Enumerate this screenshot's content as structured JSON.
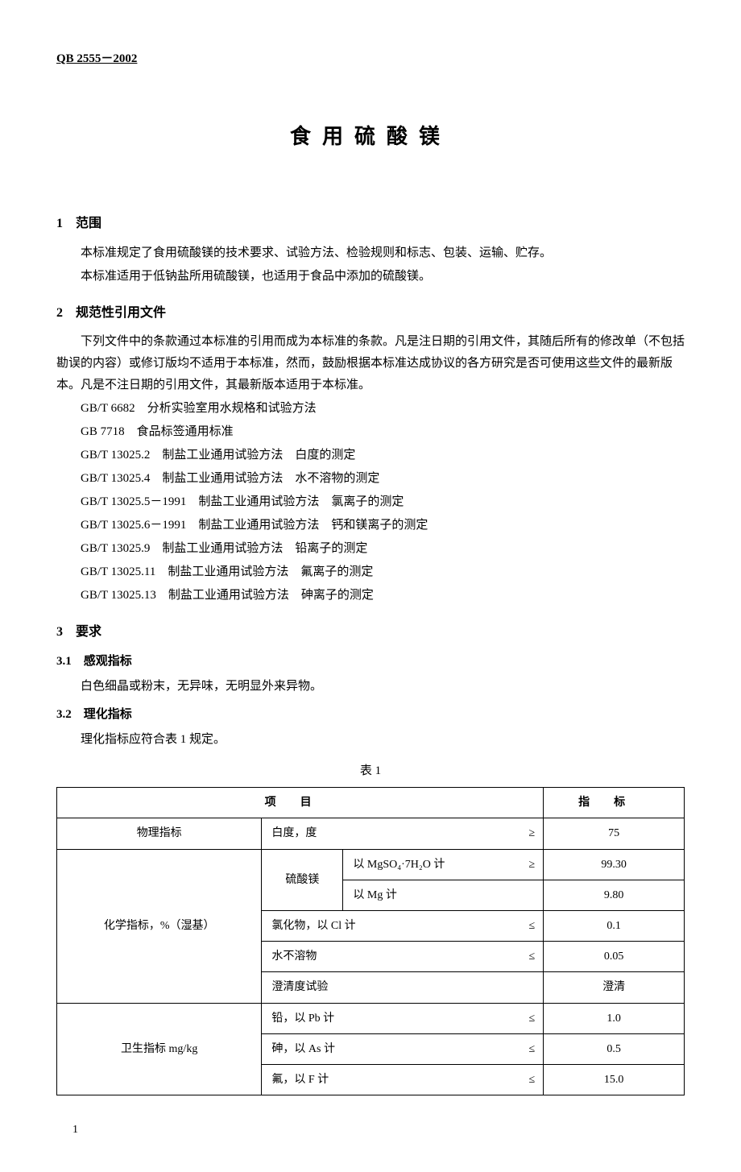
{
  "header_code": "QB 2555－2002",
  "main_title": "食用硫酸镁",
  "sections": {
    "s1": {
      "heading": "1　范围",
      "p1": "本标准规定了食用硫酸镁的技术要求、试验方法、检验规则和标志、包装、运输、贮存。",
      "p2": "本标准适用于低钠盐所用硫酸镁，也适用于食品中添加的硫酸镁。"
    },
    "s2": {
      "heading": "2　规范性引用文件",
      "p1": "下列文件中的条款通过本标准的引用而成为本标准的条款。凡是注日期的引用文件，其随后所有的修改单（不包括勘误的内容）或修订版均不适用于本标准，然而，鼓励根据本标准达成协议的各方研究是否可使用这些文件的最新版本。凡是不注日期的引用文件，其最新版本适用于本标准。",
      "refs": [
        "GB/T 6682　分析实验室用水规格和试验方法",
        "GB 7718　食品标签通用标准",
        "GB/T 13025.2　制盐工业通用试验方法　白度的测定",
        "GB/T 13025.4　制盐工业通用试验方法　水不溶物的测定",
        "GB/T 13025.5－1991　制盐工业通用试验方法　氯离子的测定",
        "GB/T 13025.6－1991　制盐工业通用试验方法　钙和镁离子的测定",
        "GB/T 13025.9　制盐工业通用试验方法　铅离子的测定",
        "GB/T 13025.11　制盐工业通用试验方法　氟离子的测定",
        "GB/T 13025.13　制盐工业通用试验方法　砷离子的测定"
      ]
    },
    "s3": {
      "heading": "3　要求",
      "sub1": {
        "heading": "3.1　感观指标",
        "p1": "白色细晶或粉末，无异味，无明显外来异物。"
      },
      "sub2": {
        "heading": "3.2　理化指标",
        "p1": "理化指标应符合表 1 规定。"
      }
    }
  },
  "table": {
    "caption": "表 1",
    "header_col1": "项目",
    "header_col2": "指标",
    "rows": {
      "physical_label": "物理指标",
      "physical_item": "白度，度",
      "physical_sym": "≥",
      "physical_val": "75",
      "chem_label": "化学指标，%（湿基）",
      "chem_sulfate_label": "硫酸镁",
      "chem_sulfate_1_item": "以 MgSO₄·7H₂O 计",
      "chem_sulfate_1_sym": "≥",
      "chem_sulfate_1_val": "99.30",
      "chem_sulfate_2_item": "以 Mg 计",
      "chem_sulfate_2_val": "9.80",
      "chem_cl_item": "氯化物，以 Cl 计",
      "chem_cl_sym": "≤",
      "chem_cl_val": "0.1",
      "chem_insol_item": "水不溶物",
      "chem_insol_sym": "≤",
      "chem_insol_val": "0.05",
      "chem_clarity_item": "澄清度试验",
      "chem_clarity_val": "澄清",
      "hyg_label": "卫生指标 mg/kg",
      "hyg_pb_item": "铅，以 Pb 计",
      "hyg_pb_sym": "≤",
      "hyg_pb_val": "1.0",
      "hyg_as_item": "砷，以 As 计",
      "hyg_as_sym": "≤",
      "hyg_as_val": "0.5",
      "hyg_f_item": "氟，以 F 计",
      "hyg_f_sym": "≤",
      "hyg_f_val": "15.0"
    }
  },
  "page_number": "1"
}
